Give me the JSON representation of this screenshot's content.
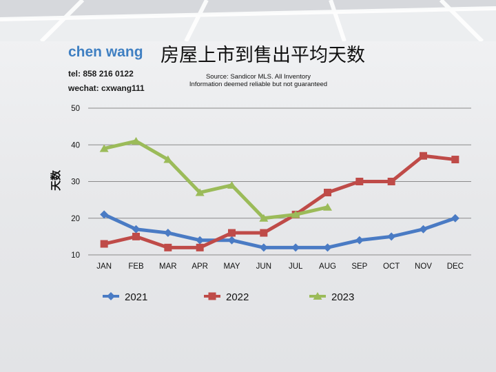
{
  "header": {
    "name": "chen wang",
    "tel": "tel: 858 216 0122",
    "wechat": "wechat: cxwang111",
    "title": "房屋上市到售出平均天数",
    "source_line1": "Source: Sandicor MLS. All Inventory",
    "source_line2": "Information deemed reliable but not guaranteed"
  },
  "chart_data": {
    "type": "line",
    "title": "房屋上市到售出平均天数",
    "xlabel": "",
    "ylabel": "天数",
    "categories": [
      "JAN",
      "FEB",
      "MAR",
      "APR",
      "MAY",
      "JUN",
      "JUL",
      "AUG",
      "SEP",
      "OCT",
      "NOV",
      "DEC"
    ],
    "ylim": [
      10,
      50
    ],
    "yticks": [
      10,
      20,
      30,
      40,
      50
    ],
    "grid": true,
    "legend_position": "bottom",
    "series": [
      {
        "name": "2021",
        "color": "#4a7bc4",
        "marker": "diamond",
        "values": [
          21,
          17,
          16,
          14,
          14,
          12,
          12,
          12,
          14,
          15,
          17,
          20
        ]
      },
      {
        "name": "2022",
        "color": "#bf4b48",
        "marker": "square",
        "values": [
          13,
          15,
          12,
          12,
          16,
          16,
          21,
          27,
          30,
          30,
          37,
          36
        ]
      },
      {
        "name": "2023",
        "color": "#9bbb59",
        "marker": "triangle",
        "values": [
          39,
          41,
          36,
          27,
          29,
          20,
          21,
          23,
          null,
          null,
          null,
          null
        ]
      }
    ]
  }
}
